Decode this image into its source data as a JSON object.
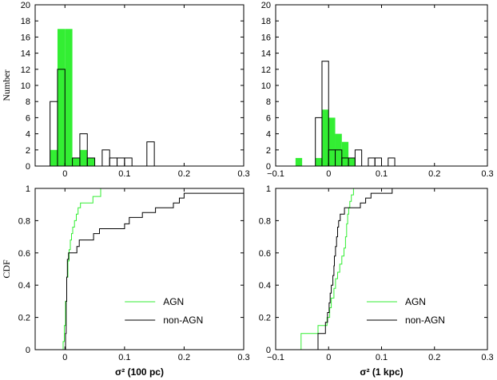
{
  "colors": {
    "agn": "#33ee33",
    "non_agn": "#000000"
  },
  "chart_data": [
    {
      "id": "hist-100pc",
      "type": "bar",
      "xlim": [
        -0.05,
        0.3
      ],
      "ylim": [
        0,
        20
      ],
      "xticks": [
        0,
        0.1,
        0.2,
        0.3
      ],
      "xtick_labels": [
        "0",
        "0.1",
        "0.2",
        "0.3"
      ],
      "yticks": [
        0,
        2,
        4,
        6,
        8,
        10,
        12,
        14,
        16,
        18,
        20
      ],
      "ytick_labels": [
        "0",
        "2",
        "4",
        "6",
        "8",
        "10",
        "12",
        "14",
        "16",
        "18",
        "20"
      ],
      "ylabel": "Number",
      "xlabel": "",
      "bin_width": 0.0125,
      "series": [
        {
          "name": "AGN",
          "fill": true,
          "bins": [
            [
              -0.025,
              2
            ],
            [
              -0.0125,
              17
            ],
            [
              0,
              17
            ],
            [
              0.0125,
              1
            ],
            [
              0.025,
              2
            ],
            [
              0.0375,
              1
            ]
          ]
        },
        {
          "name": "non-AGN",
          "fill": false,
          "bins": [
            [
              -0.025,
              8
            ],
            [
              -0.0125,
              12
            ],
            [
              0.0125,
              1
            ],
            [
              0.025,
              4
            ],
            [
              0.0375,
              1
            ],
            [
              0.05,
              0
            ],
            [
              0.0625,
              2
            ],
            [
              0.075,
              1
            ],
            [
              0.0875,
              1
            ],
            [
              0.1,
              1
            ],
            [
              0.1125,
              0
            ],
            [
              0.125,
              0
            ],
            [
              0.1375,
              3
            ]
          ]
        }
      ]
    },
    {
      "id": "hist-1kpc",
      "type": "bar",
      "xlim": [
        -0.1,
        0.3
      ],
      "ylim": [
        0,
        20
      ],
      "xticks": [
        -0.1,
        0,
        0.1,
        0.2,
        0.3
      ],
      "xtick_labels": [
        "−0.1",
        "0",
        "0.1",
        "0.2",
        "0.3"
      ],
      "yticks": [
        0,
        2,
        4,
        6,
        8,
        10,
        12,
        14,
        16,
        18,
        20
      ],
      "ytick_labels": [
        "0",
        "2",
        "4",
        "6",
        "8",
        "10",
        "12",
        "14",
        "16",
        "18",
        "20"
      ],
      "ylabel": "",
      "xlabel": "",
      "bin_width": 0.0125,
      "series": [
        {
          "name": "AGN",
          "fill": true,
          "bins": [
            [
              -0.0625,
              1
            ],
            [
              -0.0375,
              0
            ],
            [
              -0.025,
              1
            ],
            [
              -0.0125,
              7
            ],
            [
              0,
              6
            ],
            [
              0.0125,
              4
            ],
            [
              0.025,
              3
            ],
            [
              0.0375,
              1
            ]
          ]
        },
        {
          "name": "non-AGN",
          "fill": false,
          "bins": [
            [
              -0.025,
              6
            ],
            [
              -0.0125,
              13
            ],
            [
              0,
              2
            ],
            [
              0.0125,
              2
            ],
            [
              0.025,
              1
            ],
            [
              0.0375,
              1
            ],
            [
              0.05,
              2
            ],
            [
              0.0625,
              0
            ],
            [
              0.075,
              1
            ],
            [
              0.0875,
              1
            ],
            [
              0.1,
              0
            ],
            [
              0.1125,
              1
            ]
          ]
        }
      ]
    },
    {
      "id": "cdf-100pc",
      "type": "line",
      "xlim": [
        -0.05,
        0.3
      ],
      "ylim": [
        0,
        1
      ],
      "xticks": [
        0,
        0.1,
        0.2,
        0.3
      ],
      "xtick_labels": [
        "0",
        "0.1",
        "0.2",
        "0.3"
      ],
      "yticks": [
        0,
        0.2,
        0.4,
        0.6,
        0.8,
        1
      ],
      "ytick_labels": [
        "0",
        "0.2",
        "0.4",
        "0.6",
        "0.8",
        "1"
      ],
      "ylabel": "CDF",
      "xlabel": "σ² (100 pc)",
      "legend": "bottom-right",
      "series": [
        {
          "name": "AGN",
          "points": [
            [
              -0.003,
              0
            ],
            [
              -0.003,
              0.05
            ],
            [
              -0.001,
              0.05
            ],
            [
              -0.001,
              0.15
            ],
            [
              0.001,
              0.15
            ],
            [
              0.001,
              0.3
            ],
            [
              0.003,
              0.3
            ],
            [
              0.003,
              0.45
            ],
            [
              0.005,
              0.45
            ],
            [
              0.005,
              0.55
            ],
            [
              0.007,
              0.55
            ],
            [
              0.007,
              0.62
            ],
            [
              0.009,
              0.62
            ],
            [
              0.009,
              0.68
            ],
            [
              0.011,
              0.68
            ],
            [
              0.011,
              0.72
            ],
            [
              0.013,
              0.72
            ],
            [
              0.013,
              0.76
            ],
            [
              0.016,
              0.76
            ],
            [
              0.016,
              0.8
            ],
            [
              0.019,
              0.8
            ],
            [
              0.019,
              0.84
            ],
            [
              0.022,
              0.84
            ],
            [
              0.022,
              0.88
            ],
            [
              0.026,
              0.88
            ],
            [
              0.026,
              0.91
            ],
            [
              0.047,
              0.91
            ],
            [
              0.047,
              0.95
            ],
            [
              0.06,
              0.95
            ],
            [
              0.06,
              1
            ]
          ]
        },
        {
          "name": "non-AGN",
          "points": [
            [
              0.001,
              0
            ],
            [
              0.001,
              0.1
            ],
            [
              0.002,
              0.1
            ],
            [
              0.002,
              0.3
            ],
            [
              0.003,
              0.3
            ],
            [
              0.003,
              0.45
            ],
            [
              0.004,
              0.45
            ],
            [
              0.004,
              0.56
            ],
            [
              0.006,
              0.56
            ],
            [
              0.006,
              0.6
            ],
            [
              0.02,
              0.6
            ],
            [
              0.02,
              0.64
            ],
            [
              0.024,
              0.64
            ],
            [
              0.024,
              0.68
            ],
            [
              0.048,
              0.68
            ],
            [
              0.048,
              0.72
            ],
            [
              0.058,
              0.72
            ],
            [
              0.058,
              0.75
            ],
            [
              0.1,
              0.75
            ],
            [
              0.1,
              0.78
            ],
            [
              0.108,
              0.78
            ],
            [
              0.108,
              0.82
            ],
            [
              0.13,
              0.82
            ],
            [
              0.13,
              0.85
            ],
            [
              0.152,
              0.85
            ],
            [
              0.152,
              0.88
            ],
            [
              0.182,
              0.88
            ],
            [
              0.182,
              0.91
            ],
            [
              0.192,
              0.91
            ],
            [
              0.192,
              0.94
            ],
            [
              0.2,
              0.94
            ],
            [
              0.2,
              0.97
            ],
            [
              0.3,
              0.97
            ]
          ]
        }
      ]
    },
    {
      "id": "cdf-1kpc",
      "type": "line",
      "xlim": [
        -0.1,
        0.3
      ],
      "ylim": [
        0,
        1
      ],
      "xticks": [
        -0.1,
        0,
        0.1,
        0.2,
        0.3
      ],
      "xtick_labels": [
        "−0.1",
        "0",
        "0.1",
        "0.2",
        "0.3"
      ],
      "yticks": [
        0,
        0.2,
        0.4,
        0.6,
        0.8,
        1
      ],
      "ytick_labels": [
        "0",
        "0.2",
        "0.4",
        "0.6",
        "0.8",
        "1"
      ],
      "ylabel": "",
      "xlabel": "σ² (1 kpc)",
      "legend": "bottom-right",
      "series": [
        {
          "name": "AGN",
          "points": [
            [
              -0.052,
              0
            ],
            [
              -0.052,
              0.1
            ],
            [
              -0.02,
              0.1
            ],
            [
              -0.02,
              0.15
            ],
            [
              -0.003,
              0.15
            ],
            [
              -0.003,
              0.2
            ],
            [
              0.002,
              0.2
            ],
            [
              0.002,
              0.26
            ],
            [
              0.005,
              0.26
            ],
            [
              0.005,
              0.32
            ],
            [
              0.01,
              0.32
            ],
            [
              0.01,
              0.38
            ],
            [
              0.013,
              0.38
            ],
            [
              0.013,
              0.44
            ],
            [
              0.017,
              0.44
            ],
            [
              0.017,
              0.48
            ],
            [
              0.021,
              0.48
            ],
            [
              0.021,
              0.53
            ],
            [
              0.025,
              0.53
            ],
            [
              0.025,
              0.58
            ],
            [
              0.029,
              0.58
            ],
            [
              0.029,
              0.63
            ],
            [
              0.032,
              0.63
            ],
            [
              0.032,
              0.7
            ],
            [
              0.034,
              0.7
            ],
            [
              0.034,
              0.78
            ],
            [
              0.036,
              0.78
            ],
            [
              0.036,
              0.84
            ],
            [
              0.038,
              0.84
            ],
            [
              0.038,
              0.88
            ],
            [
              0.04,
              0.88
            ],
            [
              0.04,
              0.92
            ],
            [
              0.043,
              0.92
            ],
            [
              0.043,
              0.96
            ],
            [
              0.047,
              0.96
            ],
            [
              0.047,
              1
            ]
          ]
        },
        {
          "name": "non-AGN",
          "points": [
            [
              -0.02,
              0
            ],
            [
              -0.02,
              0.1
            ],
            [
              -0.006,
              0.1
            ],
            [
              -0.006,
              0.17
            ],
            [
              -0.002,
              0.17
            ],
            [
              -0.002,
              0.23
            ],
            [
              0.001,
              0.23
            ],
            [
              0.001,
              0.29
            ],
            [
              0.003,
              0.29
            ],
            [
              0.003,
              0.35
            ],
            [
              0.005,
              0.35
            ],
            [
              0.005,
              0.4
            ],
            [
              0.008,
              0.4
            ],
            [
              0.008,
              0.46
            ],
            [
              0.01,
              0.46
            ],
            [
              0.01,
              0.52
            ],
            [
              0.011,
              0.52
            ],
            [
              0.011,
              0.58
            ],
            [
              0.013,
              0.58
            ],
            [
              0.013,
              0.64
            ],
            [
              0.015,
              0.64
            ],
            [
              0.015,
              0.7
            ],
            [
              0.017,
              0.7
            ],
            [
              0.017,
              0.76
            ],
            [
              0.019,
              0.76
            ],
            [
              0.019,
              0.8
            ],
            [
              0.022,
              0.8
            ],
            [
              0.022,
              0.84
            ],
            [
              0.03,
              0.84
            ],
            [
              0.03,
              0.88
            ],
            [
              0.06,
              0.88
            ],
            [
              0.06,
              0.91
            ],
            [
              0.07,
              0.91
            ],
            [
              0.07,
              0.94
            ],
            [
              0.08,
              0.94
            ],
            [
              0.08,
              0.97
            ],
            [
              0.12,
              0.97
            ],
            [
              0.12,
              1
            ],
            [
              0.14,
              1
            ]
          ]
        }
      ]
    }
  ]
}
